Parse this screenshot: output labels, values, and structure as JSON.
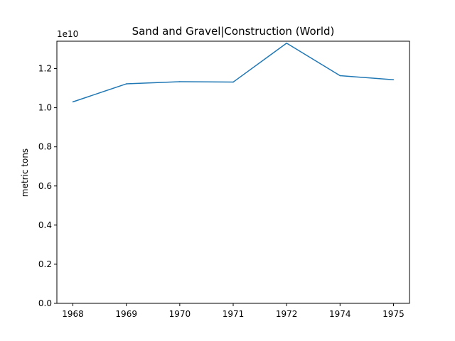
{
  "chart_data": {
    "type": "line",
    "title": "Sand and Gravel|Construction (World)",
    "xlabel": "",
    "ylabel": "metric tons",
    "y_offset_label": "1e10",
    "categories": [
      "1968",
      "1969",
      "1970",
      "1971",
      "1972",
      "1974",
      "1975"
    ],
    "series": [
      {
        "values": [
          10300000000,
          11220000000,
          11330000000,
          11310000000,
          13300000000,
          11640000000,
          11430000000
        ],
        "color": "#1f77b4"
      }
    ],
    "ylim": [
      0,
      13400000000
    ],
    "yticks": [
      0,
      2000000000,
      4000000000,
      6000000000,
      8000000000,
      10000000000,
      12000000000
    ],
    "ytick_labels": [
      "0.0",
      "0.2",
      "0.4",
      "0.6",
      "0.8",
      "1.0",
      "1.2"
    ],
    "grid": false,
    "legend": "none"
  }
}
